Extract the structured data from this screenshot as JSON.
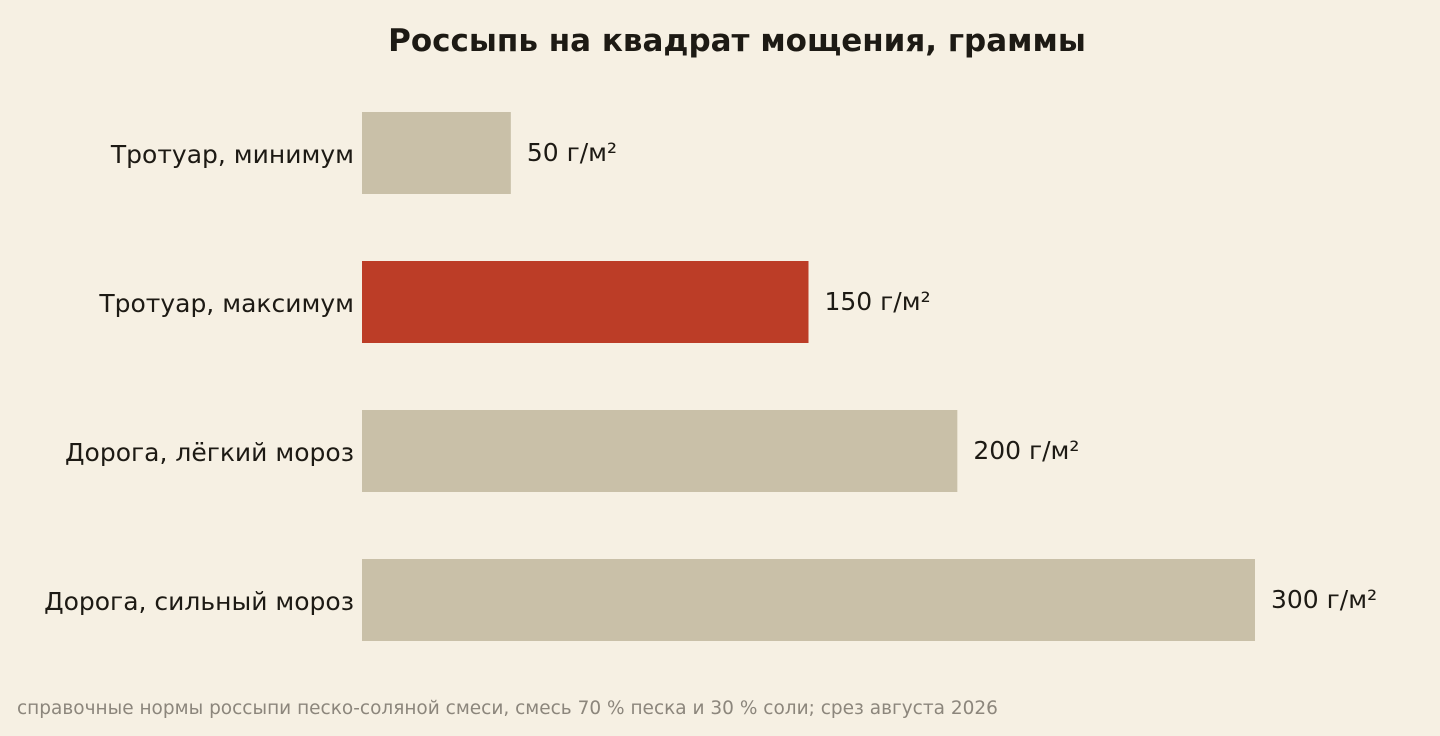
{
  "chart_data": {
    "type": "bar",
    "orientation": "horizontal",
    "title": "Россыпь на квадрат мощения, граммы",
    "categories": [
      "Тротуар, минимум",
      "Тротуар, максимум",
      "Дорога, лёгкий мороз",
      "Дорога, сильный мороз"
    ],
    "values": [
      50,
      150,
      200,
      300
    ],
    "value_labels": [
      "50 г/м²",
      "150 г/м²",
      "200 г/м²",
      "300 г/м²"
    ],
    "highlight_index": 1,
    "xlim": [
      0,
      300
    ],
    "grid": false,
    "legend": "none",
    "colors": {
      "bar": "#c9c0a8",
      "highlight": "#bc3d27",
      "background": "#f6f0e3",
      "text": "#1d1a14",
      "note": "#8c867c"
    },
    "note": "справочные нормы россыпи песко-соляной смеси, смесь 70 % песка и 30 % соли; срез августа 2026"
  }
}
